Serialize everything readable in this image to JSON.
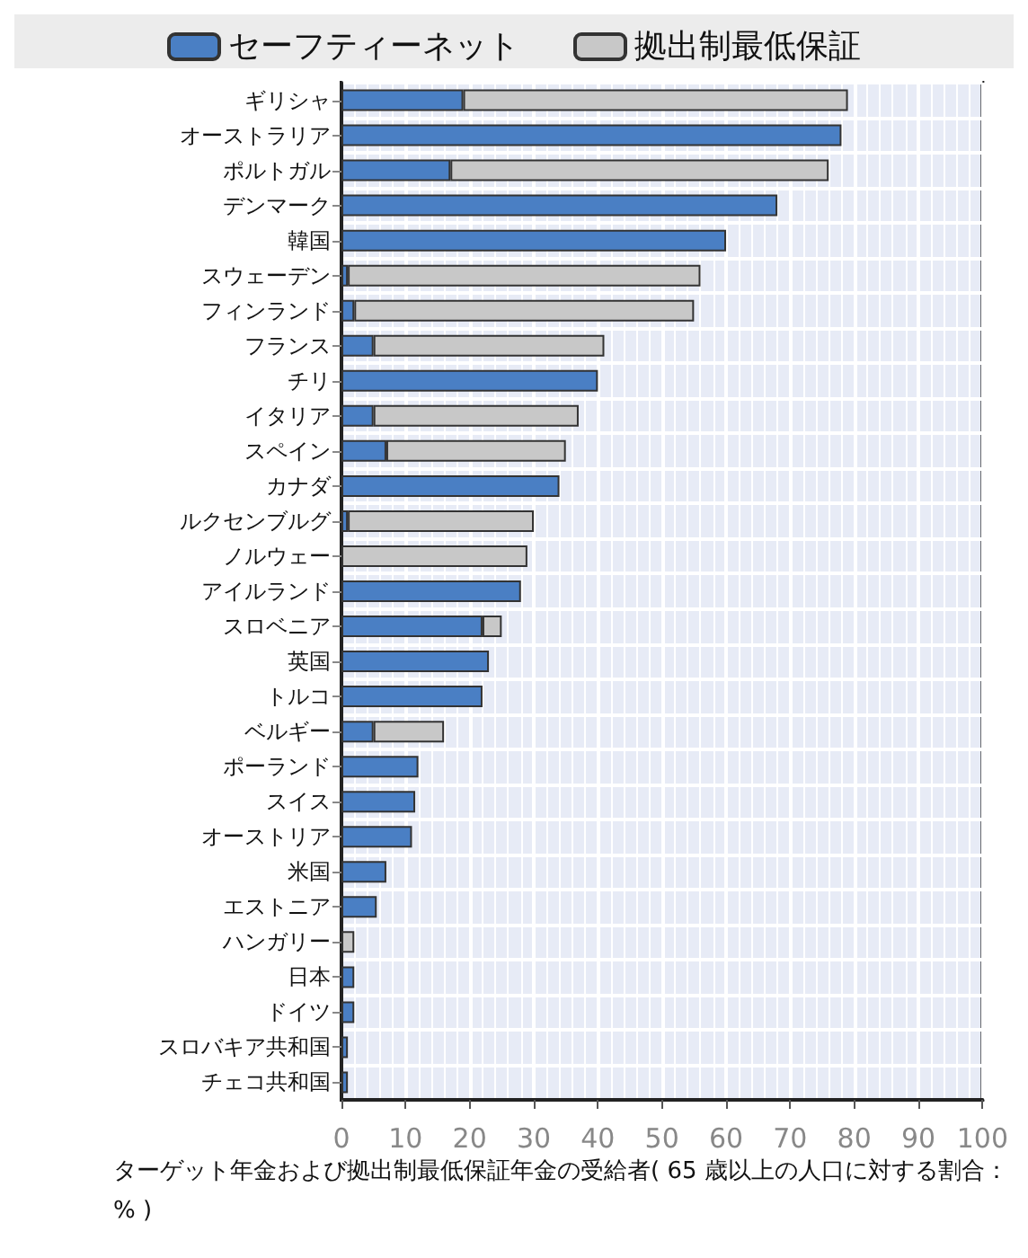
{
  "chart_data": {
    "type": "bar",
    "orientation": "horizontal",
    "stacked": true,
    "xlabel": "ターゲット年金および拠出制最低保証年金の受給者( 65 歳以上の人口に対する割合：% )",
    "categories": [
      "ギリシャ",
      "オーストラリア",
      "ポルトガル",
      "デンマーク",
      "韓国",
      "スウェーデン",
      "フィンランド",
      "フランス",
      "チリ",
      "イタリア",
      "スペイン",
      "カナダ",
      "ルクセンブルグ",
      "ノルウェー",
      "アイルランド",
      "スロベニア",
      "英国",
      "トルコ",
      "ベルギー",
      "ポーランド",
      "スイス",
      "オーストリア",
      "米国",
      "エストニア",
      "ハンガリー",
      "日本",
      "ドイツ",
      "スロバキア共和国",
      "チェコ共和国"
    ],
    "series": [
      {
        "name": "セーフティーネット",
        "color": "#4a7fc4",
        "values": [
          19,
          78,
          17,
          68,
          60,
          1,
          2,
          5,
          40,
          5,
          7,
          34,
          1,
          null,
          28,
          22,
          23,
          22,
          5,
          12,
          11.5,
          11,
          7,
          5.5,
          null,
          2,
          2,
          1,
          1
        ]
      },
      {
        "name": "拠出制最低保証",
        "color": "#c8c8c8",
        "values": [
          60,
          null,
          59,
          null,
          null,
          55,
          53,
          36,
          null,
          32,
          28,
          null,
          29,
          29,
          null,
          3,
          null,
          null,
          11,
          null,
          null,
          null,
          null,
          null,
          2,
          null,
          null,
          null,
          null
        ]
      }
    ],
    "xlim": [
      0,
      100
    ],
    "xticks": [
      0,
      10,
      20,
      30,
      40,
      50,
      60,
      70,
      80,
      90,
      100
    ],
    "grid": true,
    "legend": "top"
  }
}
